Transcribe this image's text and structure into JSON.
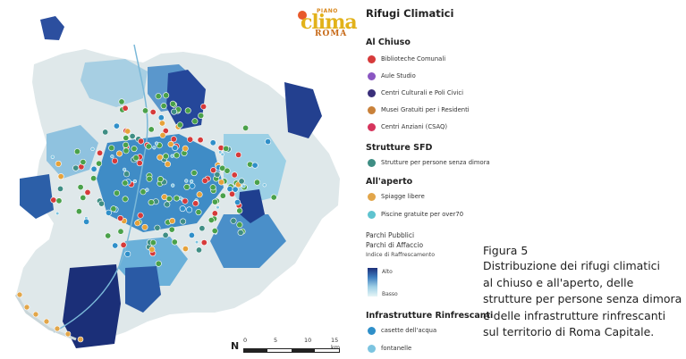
{
  "logo": {
    "small": "PIANO",
    "big": "clima",
    "roma": "ROMA"
  },
  "scale": {
    "north": "N",
    "ticks": [
      "0",
      "5",
      "10",
      "15 km"
    ]
  },
  "legend": {
    "title": "Rifugi Climatici",
    "section_chiuso": "Al Chiuso",
    "chiuso_items": [
      {
        "label": "Biblioteche Comunali",
        "color": "#d63a3a",
        "icon": "book-icon"
      },
      {
        "label": "Aule Studio",
        "color": "#8a56c2",
        "icon": "study-icon"
      },
      {
        "label": "Centri Culturali e Poli Civici",
        "color": "#3a2f7a",
        "icon": "culture-icon"
      },
      {
        "label": "Musei Gratuiti per i Residenti",
        "color": "#c9813a",
        "icon": "museum-icon"
      },
      {
        "label": "Centri Anziani (CSAQ)",
        "color": "#d6345c",
        "icon": "elderly-icon"
      }
    ],
    "section_sfd": "Strutture SFD",
    "sfd_items": [
      {
        "label": "Strutture per persone senza dimora",
        "color": "#3f8e84",
        "icon": "shelter-icon"
      }
    ],
    "section_aperto": "All'aperto",
    "aperto_items": [
      {
        "label": "Spiagge libere",
        "color": "#e2a64a",
        "icon": "beach-icon"
      },
      {
        "label": "Piscine gratuite per over70",
        "color": "#5fc3cf",
        "icon": "pool-icon"
      }
    ],
    "parchi_1": "Parchi Pubblici",
    "parchi_2": "Parchi di Affaccio",
    "indice": "Indice di  Raffrescamento",
    "alto": "Alto",
    "basso": "Basso",
    "section_infra": "Infrastrutture Rinfrescanti",
    "infra_items": [
      {
        "label": "casette dell'acqua",
        "color": "#2f8fc9",
        "icon": "water-house-icon"
      },
      {
        "label": "fontanelle",
        "color": "#7cc4e0",
        "icon": "fountain-icon"
      }
    ]
  },
  "caption": {
    "label": "Figura 5",
    "lines": [
      "Distribuzione dei rifugi climatici",
      "al chiuso e all'aperto, delle",
      "strutture per persone senza dimora",
      "e delle infrastrutture rinfrescanti",
      "sul territorio di Roma Capitale."
    ]
  }
}
